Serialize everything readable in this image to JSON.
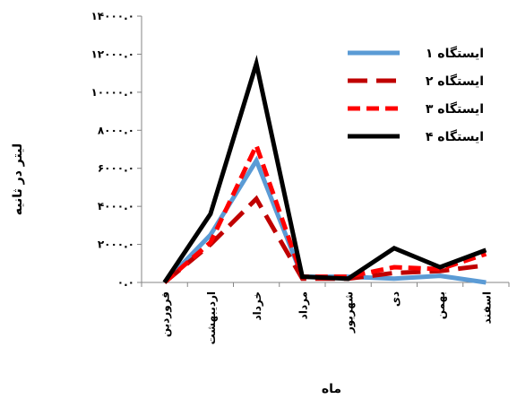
{
  "chart_data": {
    "type": "line",
    "categories": [
      "فروردین",
      "اردیبهشت",
      "خرداد",
      "مرداد",
      "شهریور",
      "دی",
      "بهمن",
      "اسفند"
    ],
    "ylim": [
      0,
      14000
    ],
    "y_ticks": [
      0,
      2000,
      4000,
      6000,
      8000,
      10000,
      12000,
      14000
    ],
    "y_tick_labels": [
      "۰.۰",
      "۲۰۰۰.۰",
      "۴۰۰۰.۰",
      "۶۰۰۰.۰",
      "۸۰۰۰.۰",
      "۱۰۰۰۰.۰",
      "۱۲۰۰۰.۰",
      "۱۴۰۰۰.۰"
    ],
    "xlabel": "ماه",
    "ylabel": "لیتر در ثانیه",
    "grid": false,
    "legend_position": "top-right",
    "series": [
      {
        "name": "ایستگاه ۱",
        "color": "#5b9bd5",
        "dash": "solid",
        "values": [
          0,
          2500,
          6400,
          300,
          300,
          200,
          350,
          0
        ]
      },
      {
        "name": "ایستگاه ۲",
        "color": "#c00000",
        "dash": "long-dash",
        "values": [
          0,
          2000,
          4400,
          200,
          200,
          500,
          600,
          900
        ]
      },
      {
        "name": "ایستگاه ۳",
        "color": "#ff0000",
        "dash": "dash",
        "values": [
          0,
          2100,
          7200,
          300,
          300,
          800,
          700,
          1500
        ]
      },
      {
        "name": "ایستگاه ۴",
        "color": "#000000",
        "dash": "solid",
        "values": [
          0,
          3600,
          11500,
          300,
          200,
          1800,
          800,
          1700
        ]
      }
    ]
  }
}
